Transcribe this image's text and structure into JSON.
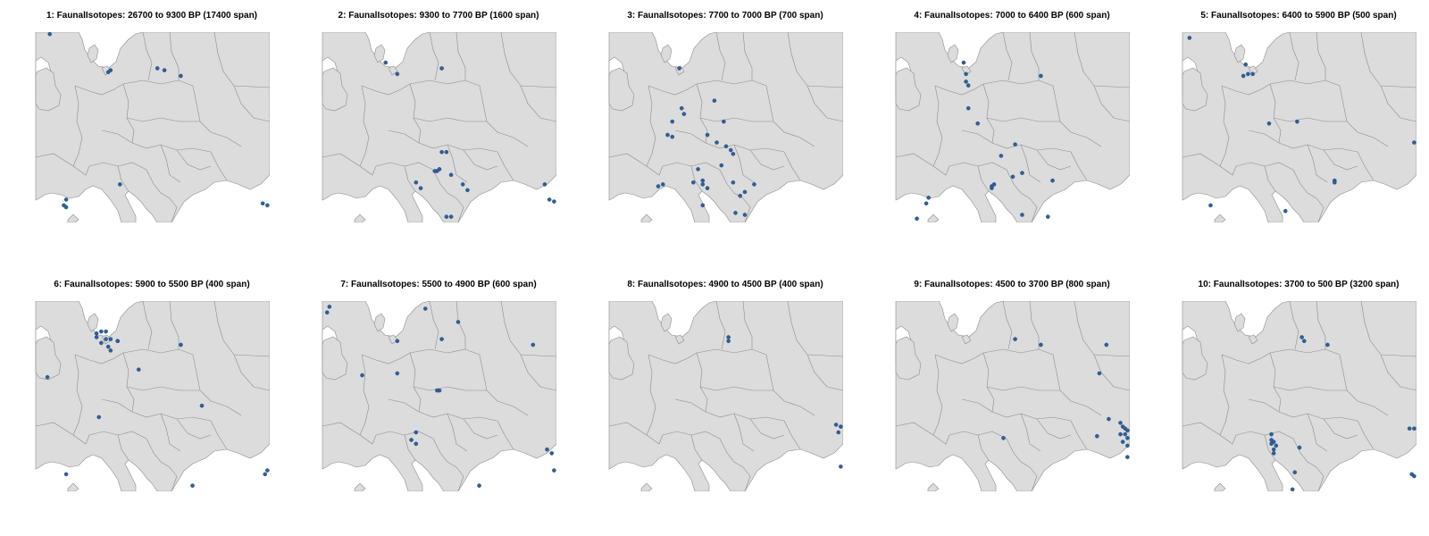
{
  "colors": {
    "land": "#dcdcdc",
    "border": "#8c8c8c",
    "sea": "#ffffff",
    "point": "#2f5f98"
  },
  "panels": [
    {
      "title": "1: FaunalIsotopes: 26700 to 9300 BP (17400 span)",
      "points": [
        [
          0.06,
          0.01
        ],
        [
          0.31,
          0.21
        ],
        [
          0.32,
          0.2
        ],
        [
          0.52,
          0.19
        ],
        [
          0.55,
          0.2
        ],
        [
          0.62,
          0.23
        ],
        [
          0.36,
          0.8
        ],
        [
          0.13,
          0.88
        ],
        [
          0.12,
          0.91
        ],
        [
          0.13,
          0.92
        ],
        [
          0.97,
          0.9
        ],
        [
          0.99,
          0.91
        ]
      ]
    },
    {
      "title": "2: FaunalIsotopes: 9300 to 7700 BP (1600 span)",
      "points": [
        [
          0.27,
          0.16
        ],
        [
          0.32,
          0.22
        ],
        [
          0.51,
          0.19
        ],
        [
          0.51,
          0.63
        ],
        [
          0.53,
          0.63
        ],
        [
          0.5,
          0.72
        ],
        [
          0.49,
          0.73
        ],
        [
          0.48,
          0.73
        ],
        [
          0.55,
          0.75
        ],
        [
          0.4,
          0.79
        ],
        [
          0.42,
          0.82
        ],
        [
          0.6,
          0.8
        ],
        [
          0.62,
          0.83
        ],
        [
          0.53,
          0.97
        ],
        [
          0.55,
          0.97
        ],
        [
          0.95,
          0.8
        ],
        [
          0.97,
          0.88
        ],
        [
          0.99,
          0.89
        ]
      ]
    },
    {
      "title": "3: FaunalIsotopes: 7700 to 7000 BP (700 span)",
      "points": [
        [
          0.3,
          0.19
        ],
        [
          0.45,
          0.36
        ],
        [
          0.31,
          0.4
        ],
        [
          0.32,
          0.43
        ],
        [
          0.27,
          0.47
        ],
        [
          0.49,
          0.47
        ],
        [
          0.25,
          0.54
        ],
        [
          0.27,
          0.55
        ],
        [
          0.42,
          0.54
        ],
        [
          0.46,
          0.58
        ],
        [
          0.5,
          0.6
        ],
        [
          0.52,
          0.62
        ],
        [
          0.53,
          0.64
        ],
        [
          0.48,
          0.7
        ],
        [
          0.38,
          0.72
        ],
        [
          0.4,
          0.78
        ],
        [
          0.4,
          0.8
        ],
        [
          0.36,
          0.79
        ],
        [
          0.42,
          0.82
        ],
        [
          0.53,
          0.79
        ],
        [
          0.58,
          0.84
        ],
        [
          0.62,
          0.8
        ],
        [
          0.21,
          0.81
        ],
        [
          0.23,
          0.8
        ],
        [
          0.56,
          0.86
        ],
        [
          0.4,
          0.91
        ],
        [
          0.54,
          0.95
        ],
        [
          0.58,
          0.96
        ]
      ]
    },
    {
      "title": "4: FaunalIsotopes: 7000 to 6400 BP (600 span)",
      "points": [
        [
          0.29,
          0.16
        ],
        [
          0.3,
          0.22
        ],
        [
          0.3,
          0.26
        ],
        [
          0.31,
          0.28
        ],
        [
          0.62,
          0.23
        ],
        [
          0.31,
          0.4
        ],
        [
          0.35,
          0.48
        ],
        [
          0.51,
          0.59
        ],
        [
          0.45,
          0.65
        ],
        [
          0.54,
          0.74
        ],
        [
          0.5,
          0.76
        ],
        [
          0.42,
          0.8
        ],
        [
          0.41,
          0.81
        ],
        [
          0.41,
          0.82
        ],
        [
          0.67,
          0.78
        ],
        [
          0.14,
          0.87
        ],
        [
          0.13,
          0.9
        ],
        [
          0.54,
          0.96
        ],
        [
          0.65,
          0.97
        ],
        [
          0.09,
          0.98
        ]
      ]
    },
    {
      "title": "5: FaunalIsotopes: 6400 to 5900 BP (500 span)",
      "points": [
        [
          0.03,
          0.03
        ],
        [
          0.27,
          0.17
        ],
        [
          0.26,
          0.23
        ],
        [
          0.28,
          0.22
        ],
        [
          0.3,
          0.22
        ],
        [
          0.37,
          0.48
        ],
        [
          0.49,
          0.47
        ],
        [
          0.65,
          0.78
        ],
        [
          0.65,
          0.79
        ],
        [
          0.12,
          0.91
        ],
        [
          0.44,
          0.94
        ],
        [
          0.99,
          0.58
        ]
      ]
    },
    {
      "title": "6: FaunalIsotopes: 5900 to 5500 BP (400 span)",
      "points": [
        [
          0.26,
          0.17
        ],
        [
          0.28,
          0.16
        ],
        [
          0.3,
          0.16
        ],
        [
          0.26,
          0.19
        ],
        [
          0.32,
          0.2
        ],
        [
          0.35,
          0.21
        ],
        [
          0.3,
          0.2
        ],
        [
          0.28,
          0.22
        ],
        [
          0.31,
          0.24
        ],
        [
          0.32,
          0.26
        ],
        [
          0.35,
          0.21
        ],
        [
          0.62,
          0.23
        ],
        [
          0.44,
          0.36
        ],
        [
          0.05,
          0.4
        ],
        [
          0.71,
          0.55
        ],
        [
          0.27,
          0.61
        ],
        [
          0.13,
          0.91
        ],
        [
          0.67,
          0.97
        ],
        [
          0.99,
          0.89
        ],
        [
          0.98,
          0.91
        ]
      ]
    },
    {
      "title": "7: FaunalIsotopes: 5500 to 4900 BP (600 span)",
      "points": [
        [
          0.02,
          0.06
        ],
        [
          0.03,
          0.03
        ],
        [
          0.44,
          0.04
        ],
        [
          0.58,
          0.11
        ],
        [
          0.32,
          0.21
        ],
        [
          0.51,
          0.2
        ],
        [
          0.17,
          0.39
        ],
        [
          0.32,
          0.38
        ],
        [
          0.49,
          0.47
        ],
        [
          0.5,
          0.47
        ],
        [
          0.9,
          0.23
        ],
        [
          0.4,
          0.69
        ],
        [
          0.38,
          0.73
        ],
        [
          0.4,
          0.75
        ],
        [
          0.96,
          0.78
        ],
        [
          0.98,
          0.8
        ],
        [
          0.99,
          0.89
        ],
        [
          0.67,
          0.97
        ]
      ]
    },
    {
      "title": "8: FaunalIsotopes: 4900 to 4500 BP (400 span)",
      "points": [
        [
          0.51,
          0.19
        ],
        [
          0.51,
          0.21
        ],
        [
          0.97,
          0.65
        ],
        [
          0.99,
          0.66
        ],
        [
          0.98,
          0.69
        ],
        [
          0.99,
          0.87
        ]
      ]
    },
    {
      "title": "9: FaunalIsotopes: 4500 to 3700 BP (800 span)",
      "points": [
        [
          0.51,
          0.2
        ],
        [
          0.62,
          0.23
        ],
        [
          0.9,
          0.23
        ],
        [
          0.87,
          0.38
        ],
        [
          0.91,
          0.62
        ],
        [
          0.96,
          0.64
        ],
        [
          0.97,
          0.66
        ],
        [
          0.98,
          0.67
        ],
        [
          0.99,
          0.68
        ],
        [
          0.98,
          0.7
        ],
        [
          0.96,
          0.7
        ],
        [
          0.99,
          0.72
        ],
        [
          0.97,
          0.74
        ],
        [
          0.99,
          0.76
        ],
        [
          0.86,
          0.71
        ],
        [
          0.46,
          0.72
        ],
        [
          0.99,
          0.82
        ]
      ]
    },
    {
      "title": "10: FaunalIsotopes: 3700 to 500 BP (3200 span)",
      "points": [
        [
          0.51,
          0.19
        ],
        [
          0.52,
          0.21
        ],
        [
          0.62,
          0.23
        ],
        [
          0.97,
          0.67
        ],
        [
          0.99,
          0.67
        ],
        [
          0.38,
          0.7
        ],
        [
          0.38,
          0.73
        ],
        [
          0.39,
          0.74
        ],
        [
          0.38,
          0.75
        ],
        [
          0.4,
          0.76
        ],
        [
          0.39,
          0.78
        ],
        [
          0.39,
          0.8
        ],
        [
          0.5,
          0.77
        ],
        [
          0.48,
          0.9
        ],
        [
          0.98,
          0.91
        ],
        [
          0.99,
          0.92
        ],
        [
          0.47,
          0.99
        ]
      ]
    }
  ]
}
